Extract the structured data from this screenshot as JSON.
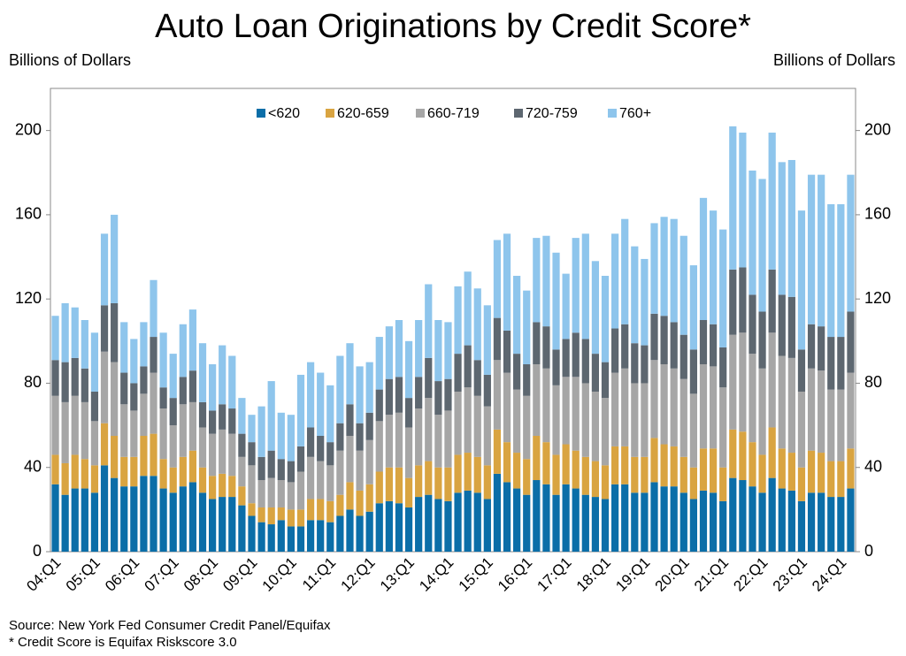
{
  "chart_data": {
    "type": "stacked_bar",
    "title": "Auto Loan Originations by Credit Score*",
    "y_label": "Billions of Dollars",
    "y2_label": "Billions of Dollars",
    "source": "Source: New York Fed Consumer Credit Panel/Equifax",
    "note": "* Credit Score is Equifax Riskscore 3.0",
    "categories": [
      "04:Q1",
      null,
      null,
      null,
      "05:Q1",
      null,
      null,
      null,
      "06:Q1",
      null,
      null,
      null,
      "07:Q1",
      null,
      null,
      null,
      "08:Q1",
      null,
      null,
      null,
      "09:Q1",
      null,
      null,
      null,
      "10:Q1",
      null,
      null,
      null,
      "11:Q1",
      null,
      null,
      null,
      "12:Q1",
      null,
      null,
      null,
      "13:Q1",
      null,
      null,
      null,
      "14:Q1",
      null,
      null,
      null,
      "15:Q1",
      null,
      null,
      null,
      "16:Q1",
      null,
      null,
      null,
      "17:Q1",
      null,
      null,
      null,
      "18:Q1",
      null,
      null,
      null,
      "19:Q1",
      null,
      null,
      null,
      "20:Q1",
      null,
      null,
      null,
      "21:Q1",
      null,
      null,
      null,
      "22:Q1",
      null,
      null,
      null,
      "23:Q1",
      null,
      null,
      null,
      "24:Q1",
      null
    ],
    "series": [
      {
        "name": "<620",
        "color": "#0b6ea8",
        "values": [
          32,
          27,
          30,
          30,
          28,
          41,
          35,
          31,
          31,
          36,
          36,
          30,
          28,
          31,
          33,
          28,
          25,
          26,
          26,
          22,
          17,
          14,
          13,
          15,
          12,
          12,
          15,
          15,
          14,
          17,
          20,
          17,
          19,
          23,
          24,
          23,
          21,
          26,
          27,
          25,
          24,
          28,
          29,
          28,
          25,
          37,
          33,
          30,
          27,
          34,
          32,
          27,
          32,
          30,
          27,
          26,
          25,
          32,
          32,
          28,
          28,
          33,
          31,
          31,
          28,
          25,
          29,
          28,
          24,
          35,
          34,
          31,
          28,
          35,
          30,
          29,
          24,
          28,
          28,
          26,
          26,
          30
        ]
      },
      {
        "name": "620-659",
        "color": "#d9a441",
        "values": [
          14,
          15,
          16,
          14,
          13,
          20,
          20,
          14,
          14,
          19,
          20,
          14,
          12,
          14,
          15,
          12,
          11,
          11,
          10,
          9,
          6,
          7,
          8,
          6,
          8,
          8,
          10,
          10,
          10,
          10,
          13,
          12,
          13,
          15,
          16,
          17,
          14,
          15,
          16,
          15,
          16,
          18,
          18,
          17,
          16,
          21,
          19,
          17,
          17,
          21,
          20,
          19,
          19,
          18,
          18,
          17,
          16,
          18,
          18,
          17,
          17,
          21,
          20,
          19,
          17,
          15,
          20,
          21,
          16,
          23,
          23,
          21,
          18,
          24,
          19,
          18,
          16,
          20,
          19,
          17,
          17,
          19
        ]
      },
      {
        "name": "660-719",
        "color": "#a6a6a6",
        "values": [
          28,
          29,
          28,
          27,
          21,
          34,
          35,
          25,
          22,
          20,
          29,
          24,
          20,
          25,
          23,
          19,
          20,
          21,
          20,
          14,
          18,
          13,
          14,
          13,
          13,
          18,
          20,
          18,
          17,
          21,
          22,
          19,
          21,
          24,
          25,
          26,
          24,
          27,
          30,
          25,
          27,
          30,
          31,
          29,
          28,
          33,
          33,
          30,
          30,
          34,
          35,
          33,
          32,
          35,
          35,
          33,
          32,
          35,
          37,
          35,
          35,
          37,
          38,
          37,
          37,
          35,
          40,
          39,
          38,
          45,
          47,
          42,
          41,
          45,
          44,
          45,
          36,
          39,
          39,
          34,
          34,
          36
        ]
      },
      {
        "name": "720-759",
        "color": "#5d6770",
        "values": [
          17,
          19,
          18,
          16,
          14,
          22,
          28,
          15,
          13,
          13,
          17,
          10,
          13,
          13,
          15,
          12,
          11,
          12,
          12,
          11,
          11,
          11,
          13,
          10,
          10,
          12,
          14,
          12,
          11,
          13,
          15,
          13,
          13,
          15,
          17,
          17,
          14,
          15,
          19,
          16,
          15,
          18,
          20,
          17,
          15,
          20,
          20,
          17,
          15,
          20,
          20,
          17,
          18,
          21,
          21,
          18,
          17,
          21,
          21,
          19,
          18,
          22,
          23,
          22,
          21,
          21,
          21,
          20,
          19,
          31,
          31,
          28,
          27,
          30,
          29,
          29,
          20,
          21,
          21,
          25,
          25,
          29
        ]
      },
      {
        "name": "760+",
        "color": "#8ec5ec",
        "values": [
          21,
          28,
          24,
          23,
          28,
          34,
          42,
          24,
          21,
          21,
          27,
          26,
          21,
          25,
          29,
          28,
          22,
          28,
          25,
          17,
          13,
          24,
          33,
          22,
          22,
          34,
          31,
          30,
          27,
          32,
          29,
          27,
          24,
          25,
          25,
          27,
          27,
          27,
          35,
          29,
          27,
          32,
          35,
          34,
          33,
          37,
          46,
          37,
          35,
          40,
          43,
          46,
          31,
          45,
          50,
          44,
          41,
          45,
          50,
          46,
          41,
          43,
          47,
          49,
          47,
          40,
          58,
          54,
          56,
          68,
          64,
          59,
          63,
          65,
          63,
          65,
          66,
          71,
          72,
          63,
          63,
          65
        ]
      }
    ],
    "ylim": [
      0,
      220
    ],
    "yticks": [
      0,
      40,
      80,
      120,
      160,
      200
    ],
    "legend": "top"
  }
}
